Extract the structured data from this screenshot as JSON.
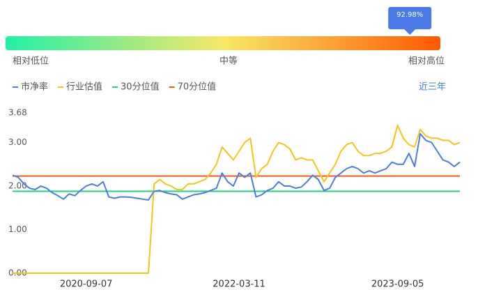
{
  "gauge": {
    "value": 92.98,
    "value_label": "92.98%",
    "labels": [
      "相对低位",
      "中等",
      "相对高位"
    ]
  },
  "range_link": "近三年",
  "chart_data": {
    "type": "line",
    "categories": [
      null,
      null,
      null,
      null,
      null,
      null,
      null,
      null,
      null,
      null,
      null,
      null,
      null,
      "2020-09-07",
      null,
      null,
      null,
      null,
      null,
      null,
      null,
      null,
      null,
      null,
      null,
      null,
      null,
      null,
      null,
      null,
      null,
      null,
      null,
      null,
      null,
      null,
      null,
      null,
      null,
      null,
      "2022-03-11",
      null,
      null,
      null,
      null,
      null,
      null,
      null,
      null,
      null,
      null,
      null,
      null,
      null,
      null,
      null,
      null,
      null,
      null,
      null,
      null,
      null,
      null,
      null,
      null,
      null,
      null,
      null,
      "2023-09-05",
      null,
      null,
      null,
      null,
      null,
      null,
      null,
      null,
      null,
      null,
      null
    ],
    "series": [
      {
        "name": "市净率",
        "color": "#4a7be8",
        "values": [
          2.25,
          2.2,
          2.05,
          1.95,
          1.92,
          2.0,
          1.95,
          1.85,
          1.78,
          1.7,
          1.82,
          1.78,
          1.9,
          2.0,
          2.05,
          2.0,
          2.1,
          1.75,
          1.72,
          1.75,
          1.75,
          1.74,
          1.72,
          1.7,
          1.68,
          1.88,
          1.9,
          1.85,
          1.82,
          1.8,
          1.7,
          1.75,
          1.8,
          1.82,
          1.85,
          1.9,
          1.95,
          2.3,
          2.1,
          2.0,
          2.3,
          2.2,
          2.3,
          1.75,
          1.8,
          1.9,
          1.95,
          2.1,
          2.0,
          2.0,
          1.95,
          1.98,
          2.1,
          2.25,
          2.15,
          1.9,
          1.95,
          2.2,
          2.3,
          2.4,
          2.45,
          2.4,
          2.3,
          2.35,
          2.3,
          2.35,
          2.4,
          2.55,
          2.5,
          2.5,
          2.75,
          2.45,
          3.2,
          3.05,
          3.0,
          2.8,
          2.6,
          2.55,
          2.45,
          2.55
        ]
      },
      {
        "name": "行业估值",
        "color": "#f5c518",
        "values": [
          0,
          0,
          0,
          0,
          0,
          0,
          0,
          0,
          0,
          0,
          0,
          0,
          0,
          0,
          0,
          0,
          0,
          0,
          0,
          0,
          0,
          0,
          0,
          0,
          0,
          2.05,
          2.15,
          2.05,
          2.0,
          1.92,
          1.92,
          2.05,
          2.05,
          2.1,
          2.15,
          2.3,
          2.5,
          2.9,
          2.75,
          2.6,
          2.8,
          3.0,
          3.1,
          2.2,
          2.4,
          2.5,
          2.8,
          3.0,
          2.95,
          2.85,
          2.6,
          2.65,
          2.6,
          2.6,
          2.35,
          2.1,
          2.3,
          2.5,
          2.8,
          2.95,
          3.0,
          2.8,
          2.7,
          2.7,
          2.75,
          2.75,
          2.8,
          2.9,
          3.4,
          3.1,
          2.95,
          2.9,
          3.3,
          3.15,
          3.1,
          3.1,
          3.05,
          3.05,
          2.95,
          3.0
        ]
      },
      {
        "name": "30分位值",
        "color": "#1ed47a",
        "value": 1.88
      },
      {
        "name": "70分位值",
        "color": "#f05a14",
        "value": 2.23
      }
    ],
    "ylim": [
      0,
      3.68
    ],
    "yticks": [
      {
        "value": 0,
        "label": "0.00"
      },
      {
        "value": 1,
        "label": "1.00"
      },
      {
        "value": 2,
        "label": "2.00"
      },
      {
        "value": 3,
        "label": "3.00"
      },
      3.68
    ],
    "grid": false
  }
}
